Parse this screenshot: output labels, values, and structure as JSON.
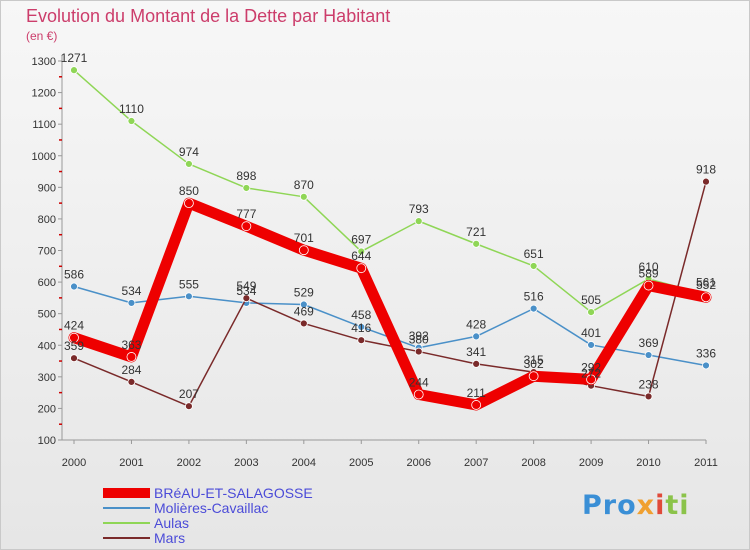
{
  "page": {
    "title": "Evolution du Montant de la Dette par Habitant",
    "unit": "(en €)"
  },
  "brand": {
    "text": "Proxiti",
    "parts": [
      "Pro",
      "x",
      "i",
      "ti"
    ]
  },
  "chart_data": {
    "type": "line",
    "title": "Evolution du Montant de la Dette par Habitant",
    "subtitle": "(en €)",
    "x": [
      "2000",
      "2001",
      "2002",
      "2003",
      "2004",
      "2005",
      "2006",
      "2007",
      "2008",
      "2009",
      "2010",
      "2011"
    ],
    "ylim": [
      100,
      1300
    ],
    "yticks": [
      100,
      200,
      300,
      400,
      500,
      600,
      700,
      800,
      900,
      1000,
      1100,
      1200,
      1300
    ],
    "grid": false,
    "legend": "bottom-left",
    "series": [
      {
        "name": "BRéAU-ET-SALAGOSSE",
        "color": "#ee0000",
        "values": [
          424,
          363,
          850,
          777,
          701,
          644,
          244,
          211,
          302,
          292,
          589,
          552
        ]
      },
      {
        "name": "Molières-Cavaillac",
        "color": "#4a90c8",
        "values": [
          586,
          534,
          555,
          534,
          529,
          458,
          392,
          428,
          516,
          401,
          369,
          336
        ]
      },
      {
        "name": "Aulas",
        "color": "#8fd656",
        "values": [
          1271,
          1110,
          974,
          898,
          870,
          697,
          793,
          721,
          651,
          505,
          610,
          561
        ]
      },
      {
        "name": "Mars",
        "color": "#7a2a2a",
        "values": [
          359,
          284,
          207,
          549,
          469,
          416,
          380,
          341,
          315,
          272,
          238,
          918
        ]
      }
    ]
  }
}
